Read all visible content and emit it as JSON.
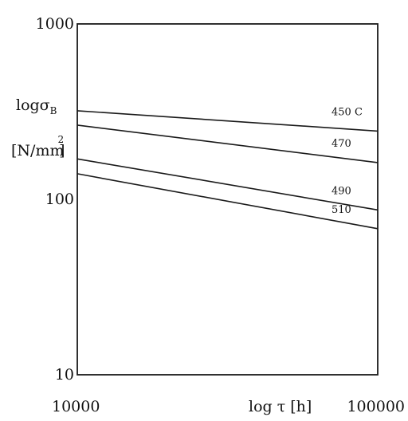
{
  "chart_data": {
    "type": "line",
    "title": "",
    "xlabel": "log τ [h]",
    "ylabel": {
      "main": "logσ",
      "subscript": "B",
      "unit": "[N/mm",
      "unit_superscript": "2",
      "unit_close": "]"
    },
    "x_scale": "log",
    "y_scale": "log",
    "xlim": [
      10000,
      100000
    ],
    "ylim": [
      10,
      1000
    ],
    "x_ticks": [
      {
        "value": 10000,
        "label": "10000"
      },
      {
        "value": 100000,
        "label": "100000"
      }
    ],
    "y_ticks": [
      {
        "value": 10,
        "label": "10"
      },
      {
        "value": 100,
        "label": "100"
      },
      {
        "value": 1000,
        "label": "1000"
      }
    ],
    "grid": false,
    "legend": "inline labels at right end of lines",
    "x": [
      10000,
      100000
    ],
    "series": [
      {
        "name": "450 C",
        "values": [
          320,
          245
        ]
      },
      {
        "name": "470",
        "values": [
          265,
          162
        ]
      },
      {
        "name": "490",
        "values": [
          170,
          87
        ]
      },
      {
        "name": "510",
        "values": [
          140,
          68
        ]
      }
    ]
  }
}
